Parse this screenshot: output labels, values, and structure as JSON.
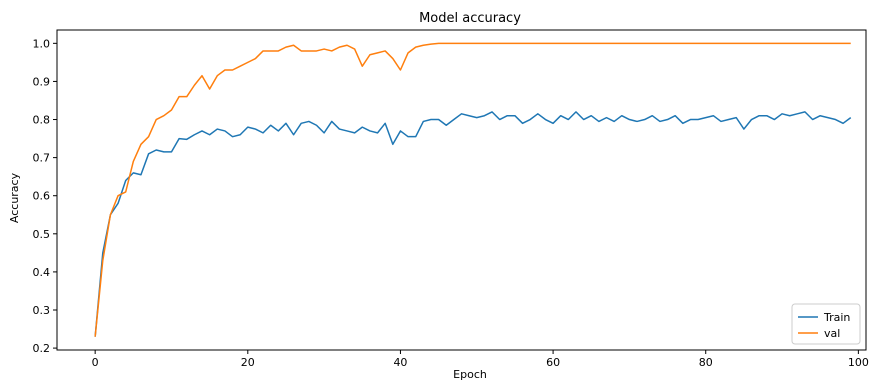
{
  "chart_data": {
    "type": "line",
    "title": "Model accuracy",
    "xlabel": "Epoch",
    "ylabel": "Accuracy",
    "xlim": [
      -5,
      101
    ],
    "ylim": [
      0.195,
      1.035
    ],
    "xticks": [
      0,
      20,
      40,
      60,
      80,
      100
    ],
    "yticks": [
      0.2,
      0.3,
      0.4,
      0.5,
      0.6,
      0.7,
      0.8,
      0.9,
      1.0
    ],
    "ytick_labels": [
      "0.2",
      "0.3",
      "0.4",
      "0.5",
      "0.6",
      "0.7",
      "0.8",
      "0.9",
      "1.0"
    ],
    "grid": false,
    "legend_position": "lower-right",
    "series": [
      {
        "name": "Train",
        "color": "#1f77b4",
        "values": [
          0.23,
          0.45,
          0.55,
          0.58,
          0.64,
          0.66,
          0.655,
          0.71,
          0.72,
          0.715,
          0.715,
          0.75,
          0.748,
          0.76,
          0.77,
          0.76,
          0.775,
          0.77,
          0.755,
          0.76,
          0.78,
          0.775,
          0.765,
          0.785,
          0.77,
          0.79,
          0.76,
          0.79,
          0.795,
          0.785,
          0.765,
          0.795,
          0.775,
          0.77,
          0.765,
          0.78,
          0.77,
          0.765,
          0.79,
          0.735,
          0.77,
          0.755,
          0.755,
          0.795,
          0.8,
          0.8,
          0.785,
          0.8,
          0.815,
          0.81,
          0.805,
          0.81,
          0.82,
          0.8,
          0.81,
          0.81,
          0.79,
          0.8,
          0.815,
          0.8,
          0.79,
          0.81,
          0.8,
          0.82,
          0.8,
          0.81,
          0.795,
          0.805,
          0.795,
          0.81,
          0.8,
          0.795,
          0.8,
          0.81,
          0.795,
          0.8,
          0.81,
          0.79,
          0.8,
          0.8,
          0.805,
          0.81,
          0.795,
          0.8,
          0.805,
          0.775,
          0.8,
          0.81,
          0.81,
          0.8,
          0.815,
          0.81,
          0.815,
          0.82,
          0.8,
          0.81,
          0.805,
          0.8,
          0.79,
          0.805
        ]
      },
      {
        "name": "val",
        "color": "#ff7f0e",
        "values": [
          0.23,
          0.43,
          0.55,
          0.6,
          0.61,
          0.69,
          0.735,
          0.755,
          0.8,
          0.81,
          0.825,
          0.86,
          0.86,
          0.89,
          0.915,
          0.88,
          0.915,
          0.93,
          0.93,
          0.94,
          0.95,
          0.96,
          0.98,
          0.98,
          0.98,
          0.99,
          0.995,
          0.98,
          0.98,
          0.98,
          0.985,
          0.98,
          0.99,
          0.995,
          0.985,
          0.94,
          0.97,
          0.975,
          0.98,
          0.96,
          0.93,
          0.975,
          0.99,
          0.995,
          0.998,
          1.0,
          1.0,
          1.0,
          1.0,
          1.0,
          1.0,
          1.0,
          1.0,
          1.0,
          1.0,
          1.0,
          1.0,
          1.0,
          1.0,
          1.0,
          1.0,
          1.0,
          1.0,
          1.0,
          1.0,
          1.0,
          1.0,
          1.0,
          1.0,
          1.0,
          1.0,
          1.0,
          1.0,
          1.0,
          1.0,
          1.0,
          1.0,
          1.0,
          1.0,
          1.0,
          1.0,
          1.0,
          1.0,
          1.0,
          1.0,
          1.0,
          1.0,
          1.0,
          1.0,
          1.0,
          1.0,
          1.0,
          1.0,
          1.0,
          1.0,
          1.0,
          1.0,
          1.0,
          1.0,
          1.0
        ]
      }
    ]
  }
}
